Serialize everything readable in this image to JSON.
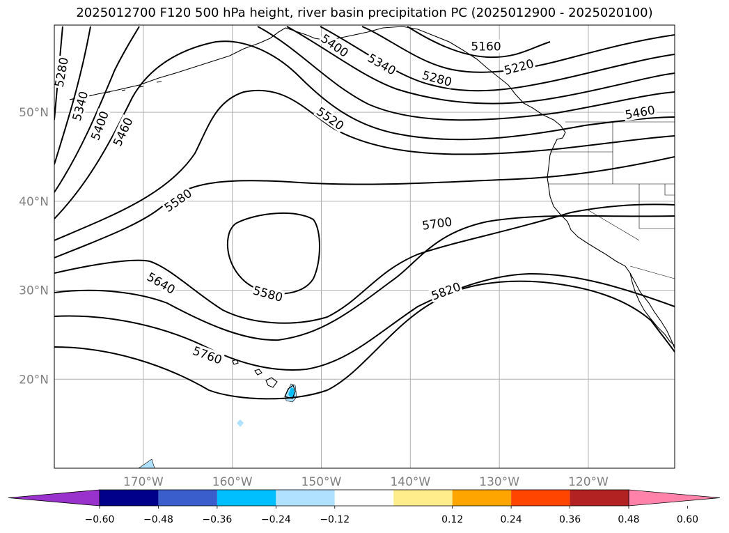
{
  "title": "2025012700 F120 500 hPa height, river basin precipitation PC (2025012900 - 2025020100)",
  "map": {
    "lon_range": [
      -180,
      -110.3
    ],
    "lat_range": [
      10,
      59.8
    ],
    "lat_ticks": [
      {
        "value": 20,
        "label": "20°N"
      },
      {
        "value": 30,
        "label": "30°N"
      },
      {
        "value": 40,
        "label": "40°N"
      },
      {
        "value": 50,
        "label": "50°N"
      }
    ],
    "lon_ticks": [
      {
        "value": -170,
        "label": "170°W"
      },
      {
        "value": -160,
        "label": "160°W"
      },
      {
        "value": -150,
        "label": "150°W"
      },
      {
        "value": -140,
        "label": "140°W"
      },
      {
        "value": -130,
        "label": "130°W"
      },
      {
        "value": -120,
        "label": "120°W"
      }
    ],
    "contour_labels": [
      {
        "text": "5280",
        "lon": -179.2,
        "lat": 54.5,
        "angle": -80
      },
      {
        "text": "5340",
        "lon": -177.1,
        "lat": 50.7,
        "angle": -75
      },
      {
        "text": "5400",
        "lon": -174.9,
        "lat": 48.5,
        "angle": -70
      },
      {
        "text": "5460",
        "lon": -172.3,
        "lat": 47.8,
        "angle": -65
      },
      {
        "text": "5400",
        "lon": -148.5,
        "lat": 57.5,
        "angle": 35
      },
      {
        "text": "5340",
        "lon": -143.2,
        "lat": 55.4,
        "angle": 30
      },
      {
        "text": "5280",
        "lon": -137.0,
        "lat": 53.8,
        "angle": 15
      },
      {
        "text": "5220",
        "lon": -127.8,
        "lat": 55.1,
        "angle": -15
      },
      {
        "text": "5160",
        "lon": -131.5,
        "lat": 57.4,
        "angle": 0
      },
      {
        "text": "5460",
        "lon": -114.2,
        "lat": 50.0,
        "angle": -10
      },
      {
        "text": "5520",
        "lon": -149.0,
        "lat": 49.3,
        "angle": 35
      },
      {
        "text": "5580",
        "lon": -166.1,
        "lat": 40.1,
        "angle": -35
      },
      {
        "text": "5700",
        "lon": -137.0,
        "lat": 37.5,
        "angle": -8
      },
      {
        "text": "5640",
        "lon": -168.0,
        "lat": 30.8,
        "angle": 30
      },
      {
        "text": "5580",
        "lon": -156.0,
        "lat": 29.6,
        "angle": 15
      },
      {
        "text": "5820",
        "lon": -136.0,
        "lat": 29.9,
        "angle": -20
      },
      {
        "text": "5760",
        "lon": -162.8,
        "lat": 22.7,
        "angle": 20
      }
    ]
  },
  "colorbar": {
    "colors": [
      "#9932cc",
      "#00008b",
      "#3a5fcd",
      "#00bfff",
      "#b0e2ff",
      "#ffffff",
      "#ffec8b",
      "#ffa500",
      "#ff4500",
      "#b22222",
      "#ff82ab"
    ],
    "bounds": [
      -0.6,
      -0.48,
      -0.36,
      -0.24,
      -0.12,
      0.12,
      0.24,
      0.36,
      0.48,
      0.6
    ],
    "tick_labels": [
      "−0.60",
      "−0.48",
      "−0.36",
      "−0.24",
      "−0.12",
      "0.12",
      "0.24",
      "0.36",
      "0.48",
      "0.60"
    ]
  }
}
